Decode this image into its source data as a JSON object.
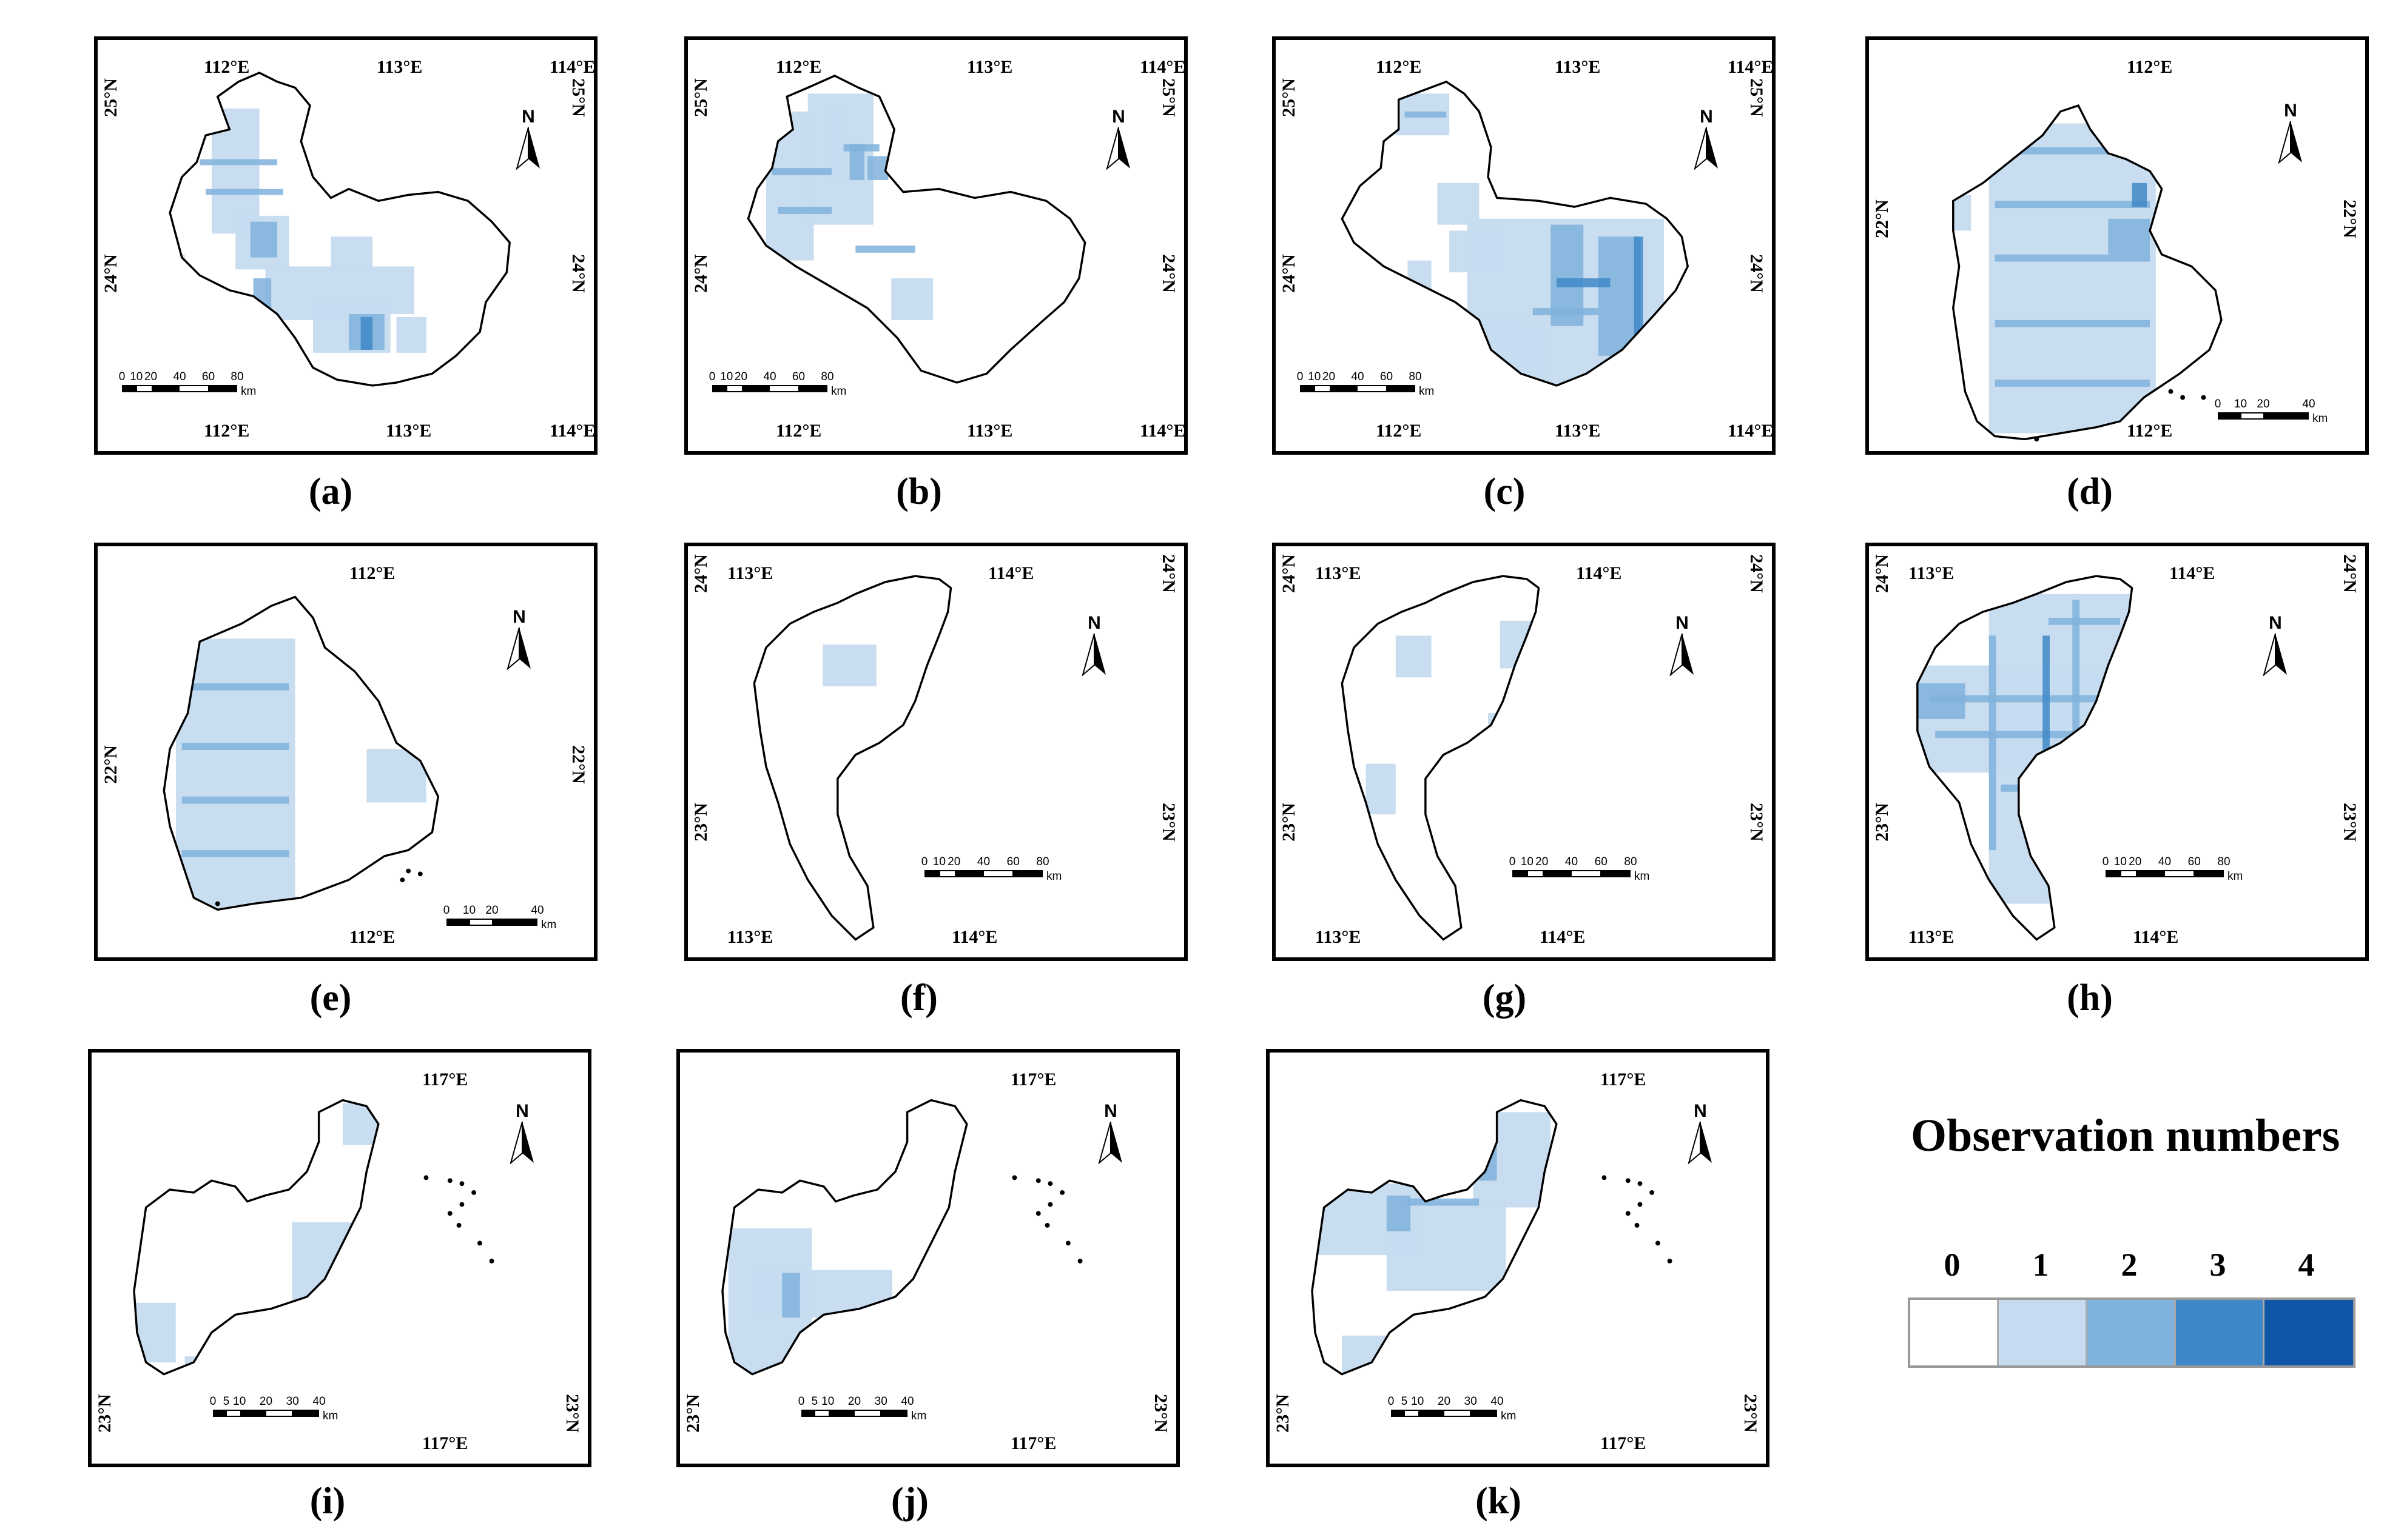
{
  "panels": [
    {
      "id": "a",
      "caption": "(a)",
      "top_labels": [
        "112°E",
        "113°E",
        "114°E"
      ],
      "bottom_labels": [
        "112°E",
        "113°E",
        "114°E"
      ],
      "left_labels": [
        "25°N",
        "24°N"
      ],
      "right_labels": [
        "25°N",
        "24°N"
      ],
      "scale_ticks": [
        "0",
        "10",
        "20",
        "40",
        "60",
        "80"
      ],
      "scale_unit": "km"
    },
    {
      "id": "b",
      "caption": "(b)",
      "top_labels": [
        "112°E",
        "113°E",
        "114°E"
      ],
      "bottom_labels": [
        "112°E",
        "113°E",
        "114°E"
      ],
      "left_labels": [
        "25°N",
        "24°N"
      ],
      "right_labels": [
        "25°N",
        "24°N"
      ],
      "scale_ticks": [
        "0",
        "10",
        "20",
        "40",
        "60",
        "80"
      ],
      "scale_unit": "km"
    },
    {
      "id": "c",
      "caption": "(c)",
      "top_labels": [
        "112°E",
        "113°E",
        "114°E"
      ],
      "bottom_labels": [
        "112°E",
        "113°E",
        "114°E"
      ],
      "left_labels": [
        "25°N",
        "24°N"
      ],
      "right_labels": [
        "25°N",
        "24°N"
      ],
      "scale_ticks": [
        "0",
        "10",
        "20",
        "40",
        "60",
        "80"
      ],
      "scale_unit": "km"
    },
    {
      "id": "d",
      "caption": "(d)",
      "top_labels": [
        "112°E"
      ],
      "bottom_labels": [
        "112°E"
      ],
      "left_labels": [
        "22°N"
      ],
      "right_labels": [
        "22°N"
      ],
      "scale_ticks": [
        "0",
        "10",
        "20",
        "40"
      ],
      "scale_unit": "km"
    },
    {
      "id": "e",
      "caption": "(e)",
      "top_labels": [
        "112°E"
      ],
      "bottom_labels": [
        "112°E"
      ],
      "left_labels": [
        "22°N"
      ],
      "right_labels": [
        "22°N"
      ],
      "scale_ticks": [
        "0",
        "10",
        "20",
        "40"
      ],
      "scale_unit": "km"
    },
    {
      "id": "f",
      "caption": "(f)",
      "top_labels": [
        "113°E",
        "114°E"
      ],
      "bottom_labels": [
        "113°E",
        "114°E"
      ],
      "left_labels": [
        "24°N",
        "23°N"
      ],
      "right_labels": [
        "24°N",
        "23°N"
      ],
      "scale_ticks": [
        "0",
        "10",
        "20",
        "40",
        "60",
        "80"
      ],
      "scale_unit": "km"
    },
    {
      "id": "g",
      "caption": "(g)",
      "top_labels": [
        "113°E",
        "114°E"
      ],
      "bottom_labels": [
        "113°E",
        "114°E"
      ],
      "left_labels": [
        "24°N",
        "23°N"
      ],
      "right_labels": [
        "24°N",
        "23°N"
      ],
      "scale_ticks": [
        "0",
        "10",
        "20",
        "40",
        "60",
        "80"
      ],
      "scale_unit": "km"
    },
    {
      "id": "h",
      "caption": "(h)",
      "top_labels": [
        "113°E",
        "114°E"
      ],
      "bottom_labels": [
        "113°E",
        "114°E"
      ],
      "left_labels": [
        "24°N",
        "23°N"
      ],
      "right_labels": [
        "24°N",
        "23°N"
      ],
      "scale_ticks": [
        "0",
        "10",
        "20",
        "40",
        "60",
        "80"
      ],
      "scale_unit": "km"
    },
    {
      "id": "i",
      "caption": "(i)",
      "top_labels": [
        "117°E"
      ],
      "bottom_labels": [
        "117°E"
      ],
      "left_labels": [
        "23°N"
      ],
      "right_labels": [
        "23°N"
      ],
      "scale_ticks": [
        "0",
        "5",
        "10",
        "20",
        "30",
        "40"
      ],
      "scale_unit": "km"
    },
    {
      "id": "j",
      "caption": "(j)",
      "top_labels": [
        "117°E"
      ],
      "bottom_labels": [
        "117°E"
      ],
      "left_labels": [
        "23°N"
      ],
      "right_labels": [
        "23°N"
      ],
      "scale_ticks": [
        "0",
        "5",
        "10",
        "20",
        "30",
        "40"
      ],
      "scale_unit": "km"
    },
    {
      "id": "k",
      "caption": "(k)",
      "top_labels": [
        "117°E"
      ],
      "bottom_labels": [
        "117°E"
      ],
      "left_labels": [
        "23°N"
      ],
      "right_labels": [
        "23°N"
      ],
      "scale_ticks": [
        "0",
        "5",
        "10",
        "20",
        "30",
        "40"
      ],
      "scale_unit": "km"
    }
  ],
  "north_label": "N",
  "legend": {
    "title": "Observation numbers",
    "classes": [
      {
        "label": "0",
        "color": "#ffffff"
      },
      {
        "label": "1",
        "color": "#c6dbef"
      },
      {
        "label": "2",
        "color": "#7fb2dc"
      },
      {
        "label": "3",
        "color": "#3f88c8"
      },
      {
        "label": "4",
        "color": "#0f56a8"
      }
    ]
  }
}
